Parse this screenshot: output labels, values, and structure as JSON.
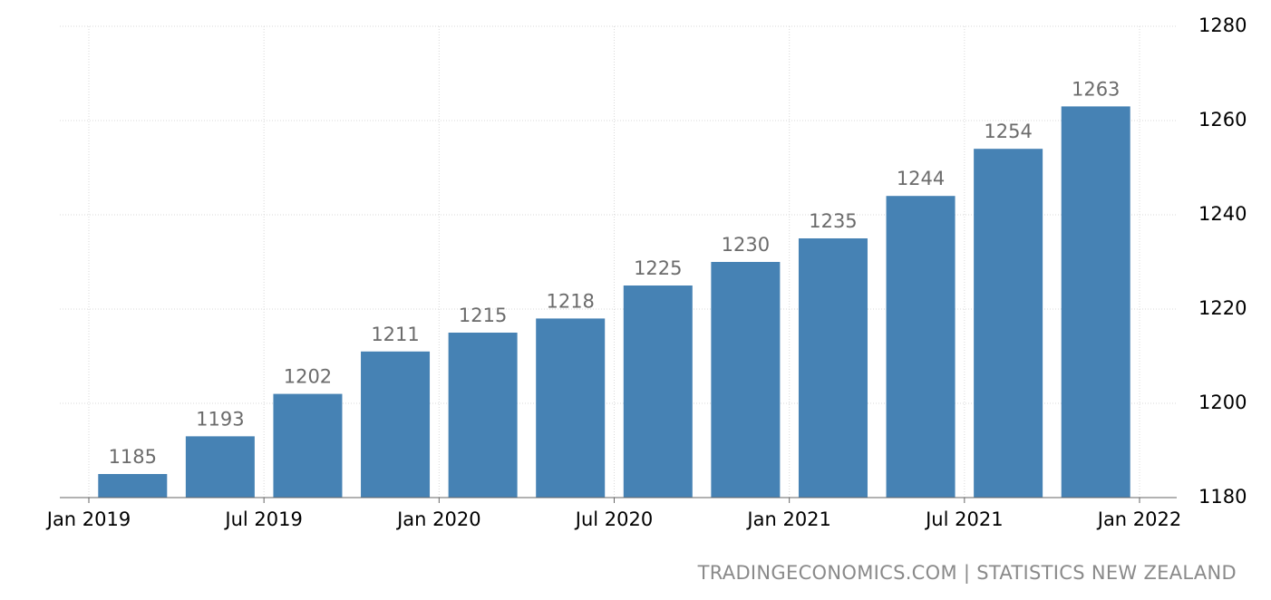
{
  "chart_data": {
    "type": "bar",
    "dates": [
      "2019-01",
      "2019-04",
      "2019-07",
      "2019-10",
      "2020-01",
      "2020-04",
      "2020-07",
      "2020-10",
      "2021-01",
      "2021-04",
      "2021-07",
      "2021-10"
    ],
    "values": [
      1185,
      1193,
      1202,
      1211,
      1215,
      1218,
      1225,
      1230,
      1235,
      1244,
      1254,
      1263
    ],
    "value_labels": [
      "1185",
      "1193",
      "1202",
      "1211",
      "1215",
      "1218",
      "1225",
      "1230",
      "1235",
      "1244",
      "1254",
      "1263"
    ],
    "x_ticks": [
      "Jan 2019",
      "Jul 2019",
      "Jan 2020",
      "Jul 2020",
      "Jan 2021",
      "Jul 2021",
      "Jan 2022"
    ],
    "y_ticks": [
      "1180",
      "1200",
      "1220",
      "1240",
      "1260",
      "1280"
    ],
    "ylim": [
      1180,
      1280
    ],
    "y_axis_side": "right",
    "grid": true,
    "bar_color": "#4682b4",
    "label_color": "#6b6b6b"
  },
  "source_text": "TRADINGECONOMICS.COM | STATISTICS NEW ZEALAND"
}
